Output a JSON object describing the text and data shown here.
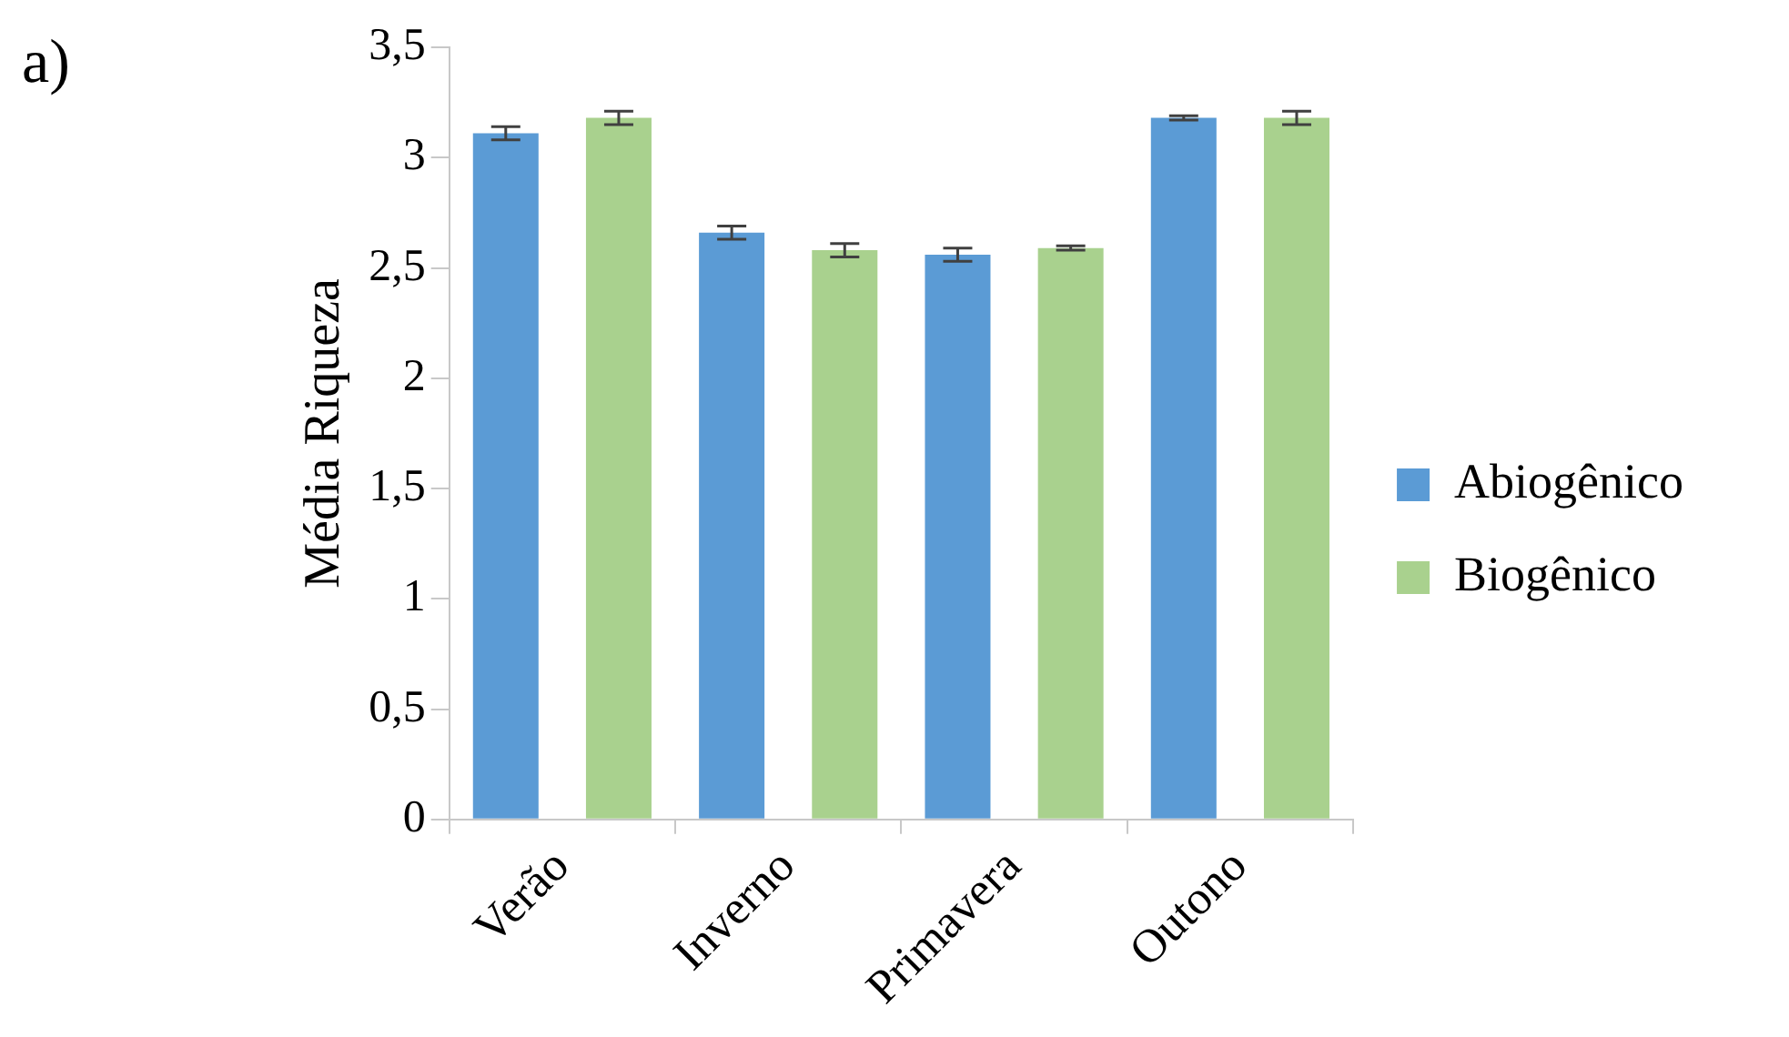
{
  "chart_data": {
    "type": "bar",
    "ylabel": "Média Riqueza",
    "annotations": [
      "a)"
    ],
    "categories": [
      "Verão",
      "Inverno",
      "Primavera",
      "Outono"
    ],
    "series": [
      {
        "name": "Abiogênico",
        "color": "#5b9bd5",
        "values": [
          3.11,
          2.66,
          2.56,
          3.18
        ],
        "errors": [
          0.03,
          0.03,
          0.03,
          0.01
        ]
      },
      {
        "name": "Biogênico",
        "color": "#a9d18e",
        "values": [
          3.18,
          2.58,
          2.59,
          3.18
        ],
        "errors": [
          0.03,
          0.03,
          0.01,
          0.03
        ]
      }
    ],
    "ylim": [
      0,
      3.5
    ],
    "yticks": [
      0,
      {
        "value": 0.5,
        "label": "0,5"
      },
      1,
      {
        "value": 1.5,
        "label": "1,5"
      },
      2,
      {
        "value": 2.5,
        "label": "2,5"
      },
      3,
      {
        "value": 3.5,
        "label": "3,5"
      }
    ],
    "grid": false,
    "legend": "right"
  }
}
